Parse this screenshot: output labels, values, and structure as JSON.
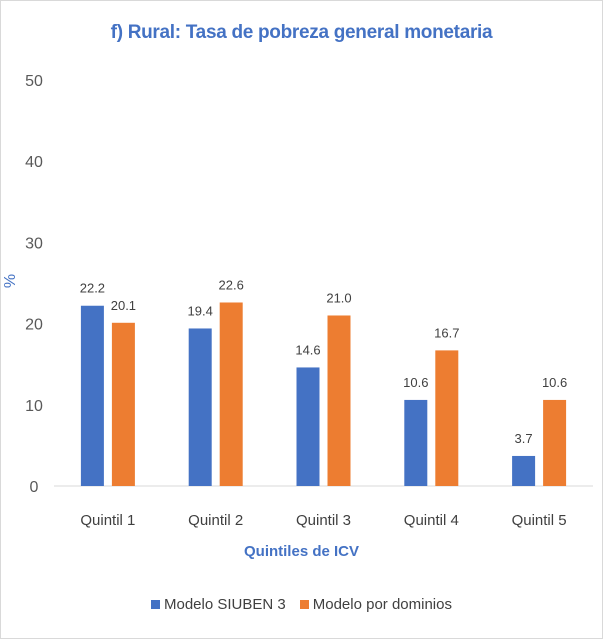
{
  "chart_data": {
    "type": "bar",
    "title": "f) Rural: Tasa de pobreza general monetaria",
    "xlabel": "Quintiles de ICV",
    "ylabel": "%",
    "ylim": [
      0,
      50
    ],
    "yticks": [
      0,
      10,
      20,
      30,
      40,
      50
    ],
    "grid": false,
    "legend_position": "bottom",
    "categories": [
      "Quintil 1",
      "Quintil 2",
      "Quintil 3",
      "Quintil 4",
      "Quintil 5"
    ],
    "series": [
      {
        "name": "Modelo SIUBEN 3",
        "color": "#4472c4",
        "values": [
          22.2,
          19.4,
          14.6,
          10.6,
          3.7
        ],
        "labels": [
          "22.2",
          "19.4",
          "14.6",
          "10.6",
          "3.7"
        ]
      },
      {
        "name": "Modelo por dominios",
        "color": "#ed7d31",
        "values": [
          20.1,
          22.6,
          21.0,
          16.7,
          10.6
        ],
        "labels": [
          "20.1",
          "22.6",
          "21.0",
          "16.7",
          "10.6"
        ]
      }
    ]
  }
}
